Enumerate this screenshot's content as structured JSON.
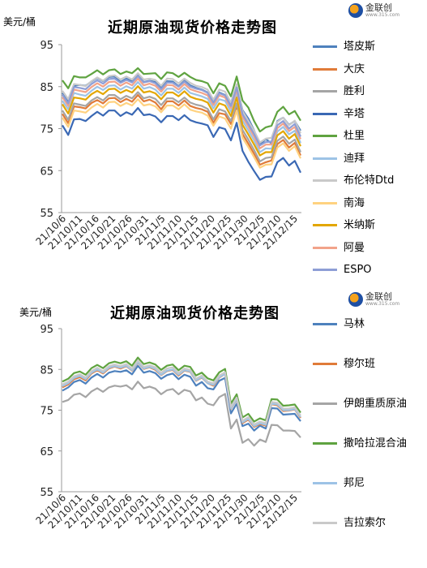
{
  "chart_data": [
    {
      "type": "line",
      "title": "近期原油现货价格走势图",
      "unit_label": "美元/桶",
      "ylim": [
        55,
        95
      ],
      "yticks": [
        55,
        65,
        75,
        85,
        95
      ],
      "grid": false,
      "legend_position": "right",
      "xtick_labels": [
        "21/10/6",
        "21/10/11",
        "21/10/16",
        "21/10/21",
        "21/10/26",
        "21/10/31",
        "21/11/5",
        "21/11/10",
        "21/11/15",
        "21/11/20",
        "21/11/25",
        "21/11/30",
        "21/12/5",
        "21/12/10",
        "21/12/15"
      ],
      "series": [
        {
          "name": "塔皮斯",
          "color": "#4e81bd",
          "values": [
            83.5,
            81.5,
            85.2,
            85.4,
            85.2,
            86.2,
            87.1,
            86.3,
            87.3,
            87.4,
            86.1,
            86.9,
            86.2,
            87.8,
            86.1,
            86.4,
            86.1,
            84.7,
            86.3,
            86.2,
            85.1,
            86.4,
            85.3,
            84.7,
            84.3,
            83.6,
            81.1,
            83.6,
            83.0,
            80.5,
            85.3,
            79.4,
            77.4,
            74.6,
            71.1,
            72.5,
            71.5,
            76.8,
            77.6,
            75.9,
            76.8,
            74.5
          ]
        },
        {
          "name": "大庆",
          "color": "#e07b39",
          "values": [
            78.5,
            76.3,
            80.3,
            80.1,
            79.8,
            81.1,
            81.8,
            81.0,
            82.2,
            82.3,
            81.3,
            82.1,
            81.4,
            83.0,
            81.5,
            81.9,
            81.2,
            79.6,
            81.5,
            81.5,
            80.5,
            81.7,
            80.4,
            79.9,
            79.6,
            79.0,
            76.4,
            78.7,
            78.4,
            76.1,
            80.2,
            73.7,
            71.4,
            69.0,
            66.4,
            67.0,
            67.4,
            71.3,
            72.3,
            70.5,
            71.6,
            68.6
          ]
        },
        {
          "name": "胜利",
          "color": "#a5a5a5",
          "values": [
            79.3,
            77.1,
            81.0,
            80.7,
            80.4,
            81.7,
            82.5,
            81.7,
            83.0,
            83.0,
            82.0,
            82.8,
            82.2,
            83.7,
            82.2,
            82.6,
            82.1,
            80.6,
            82.2,
            82.2,
            81.3,
            82.4,
            81.2,
            80.7,
            80.4,
            79.7,
            77.2,
            79.6,
            79.1,
            76.8,
            81.0,
            74.7,
            72.4,
            69.9,
            67.2,
            68.0,
            68.2,
            72.1,
            73.1,
            71.4,
            72.4,
            69.4
          ]
        },
        {
          "name": "辛塔",
          "color": "#3a68b4",
          "values": [
            75.8,
            73.5,
            77.2,
            77.3,
            76.8,
            78.0,
            79.0,
            78.1,
            79.3,
            79.3,
            78.0,
            78.9,
            78.3,
            79.9,
            78.2,
            78.4,
            77.9,
            76.5,
            78.0,
            78.0,
            77.0,
            78.2,
            77.0,
            76.5,
            76.2,
            75.8,
            73.0,
            75.3,
            74.9,
            72.2,
            76.4,
            69.7,
            67.1,
            64.9,
            62.8,
            63.5,
            63.6,
            67.0,
            68.0,
            66.2,
            67.3,
            64.5
          ]
        },
        {
          "name": "杜里",
          "color": "#5fa340",
          "values": [
            86.5,
            84.6,
            87.5,
            87.2,
            87.2,
            88.0,
            88.9,
            87.9,
            88.9,
            89.1,
            88.0,
            88.6,
            88.2,
            89.4,
            88.0,
            88.1,
            88.2,
            86.8,
            88.4,
            88.2,
            87.3,
            88.3,
            87.3,
            86.6,
            86.3,
            85.8,
            83.4,
            85.8,
            85.2,
            82.7,
            87.4,
            81.7,
            80.0,
            76.8,
            74.3,
            75.3,
            75.7,
            79.0,
            80.2,
            78.4,
            79.2,
            76.9
          ]
        },
        {
          "name": "迪拜",
          "color": "#9dc3e6",
          "values": [
            81.6,
            79.6,
            83.5,
            83.1,
            82.8,
            84.0,
            85.0,
            84.2,
            85.2,
            85.3,
            84.3,
            85.1,
            84.5,
            86.1,
            84.5,
            84.9,
            84.3,
            82.9,
            84.5,
            84.5,
            83.5,
            84.8,
            83.5,
            83.1,
            82.7,
            82.1,
            79.8,
            82.0,
            81.6,
            79.0,
            83.4,
            76.9,
            74.6,
            72.2,
            69.4,
            70.3,
            70.2,
            74.3,
            75.4,
            73.6,
            74.5,
            71.6
          ]
        },
        {
          "name": "布伦特Dtd",
          "color": "#c9c9c9",
          "values": [
            84.0,
            82.0,
            85.6,
            85.4,
            85.1,
            86.3,
            87.2,
            86.4,
            87.5,
            87.7,
            86.7,
            87.4,
            86.7,
            88.2,
            86.7,
            86.9,
            86.6,
            85.2,
            86.9,
            86.8,
            85.8,
            86.9,
            85.9,
            85.2,
            84.9,
            84.3,
            81.9,
            84.3,
            83.8,
            81.2,
            85.6,
            79.2,
            76.8,
            74.5,
            71.7,
            72.6,
            72.8,
            76.6,
            77.6,
            75.8,
            76.9,
            73.9
          ]
        },
        {
          "name": "南海",
          "color": "#ffd280",
          "values": [
            77.6,
            75.4,
            79.3,
            79.1,
            78.8,
            80.0,
            80.9,
            80.0,
            81.3,
            81.4,
            80.4,
            81.1,
            80.5,
            82.0,
            80.5,
            80.8,
            80.3,
            78.9,
            80.5,
            80.5,
            79.6,
            80.8,
            79.5,
            79.1,
            78.8,
            78.1,
            75.7,
            77.9,
            77.4,
            75.0,
            79.3,
            72.8,
            70.6,
            68.2,
            65.7,
            66.4,
            66.5,
            70.5,
            71.5,
            69.7,
            70.8,
            67.9
          ]
        },
        {
          "name": "米纳斯",
          "color": "#e3a600",
          "values": [
            80.8,
            78.6,
            82.4,
            82.2,
            81.9,
            83.2,
            84.0,
            83.2,
            84.4,
            84.5,
            83.5,
            84.2,
            83.6,
            85.1,
            83.6,
            83.9,
            83.4,
            82.0,
            83.6,
            83.6,
            82.7,
            83.9,
            82.6,
            82.1,
            81.8,
            81.2,
            78.8,
            81.0,
            80.5,
            78.0,
            82.4,
            75.9,
            73.6,
            71.2,
            68.6,
            69.4,
            69.4,
            73.4,
            74.4,
            72.6,
            73.7,
            70.8
          ]
        },
        {
          "name": "阿曼",
          "color": "#f2a38a",
          "values": [
            82.5,
            80.4,
            84.3,
            84.0,
            83.7,
            84.9,
            85.8,
            85.0,
            86.1,
            86.2,
            85.2,
            86.0,
            85.3,
            86.9,
            85.3,
            85.7,
            85.2,
            83.8,
            85.4,
            85.3,
            84.3,
            85.6,
            84.4,
            83.9,
            83.5,
            82.9,
            80.6,
            82.9,
            82.4,
            79.9,
            84.3,
            77.8,
            75.5,
            73.1,
            70.3,
            71.2,
            71.2,
            75.1,
            76.2,
            74.4,
            75.4,
            72.5
          ]
        },
        {
          "name": "ESPO",
          "color": "#8e9ed6",
          "values": [
            83.1,
            81.0,
            84.9,
            84.7,
            84.4,
            85.6,
            86.5,
            85.7,
            86.8,
            86.9,
            85.9,
            86.6,
            86.0,
            87.5,
            86.0,
            86.3,
            85.8,
            84.4,
            86.0,
            85.9,
            85.0,
            86.2,
            85.0,
            84.5,
            84.2,
            83.5,
            81.2,
            83.4,
            82.9,
            80.4,
            84.8,
            78.4,
            76.1,
            73.7,
            71.0,
            71.8,
            71.9,
            75.8,
            76.8,
            75.0,
            76.1,
            73.1
          ]
        }
      ]
    },
    {
      "type": "line",
      "title": "近期原油现货价格走势图",
      "unit_label": "美元/桶",
      "ylim": [
        55,
        95
      ],
      "yticks": [
        55,
        65,
        75,
        85,
        95
      ],
      "grid": false,
      "legend_position": "right",
      "xtick_labels": [
        "21/10/6",
        "21/10/11",
        "21/10/16",
        "21/10/21",
        "21/10/26",
        "21/10/31",
        "21/11/5",
        "21/11/10",
        "21/11/15",
        "21/11/20",
        "21/11/25",
        "21/11/30",
        "21/12/5",
        "21/12/10",
        "21/12/15"
      ],
      "series": [
        {
          "name": "马林",
          "color": "#4e81bd",
          "values": [
            79.8,
            80.6,
            81.9,
            82.4,
            81.5,
            83.0,
            83.9,
            83.0,
            84.2,
            84.6,
            84.4,
            84.8,
            83.8,
            85.9,
            84.2,
            84.6,
            84.1,
            82.7,
            83.6,
            84.0,
            82.6,
            83.7,
            83.2,
            81.0,
            81.9,
            80.4,
            80.1,
            82.2,
            82.9,
            74.2,
            76.6,
            71.1,
            71.7,
            70.0,
            71.2,
            70.5,
            75.5,
            75.4,
            73.9,
            74.0,
            74.1,
            72.3
          ]
        },
        {
          "name": "穆尔班",
          "color": "#e07b39",
          "values": [
            80.6,
            81.3,
            82.6,
            83.1,
            82.3,
            84.0,
            84.8,
            84.0,
            85.2,
            85.7,
            85.2,
            85.8,
            84.7,
            86.7,
            85.1,
            85.5,
            84.9,
            83.6,
            84.6,
            84.9,
            83.5,
            84.7,
            84.4,
            82.2,
            83.0,
            81.6,
            81.0,
            83.0,
            83.9,
            75.3,
            77.6,
            71.8,
            72.7,
            70.9,
            71.6,
            71.2,
            76.5,
            76.2,
            74.8,
            74.9,
            75.2,
            73.1
          ]
        },
        {
          "name": "伊朗重质原油",
          "color": "#a5a5a5",
          "values": [
            77.0,
            77.5,
            78.8,
            79.1,
            78.2,
            79.6,
            80.4,
            79.5,
            80.6,
            81.0,
            80.8,
            81.1,
            80.1,
            82.0,
            80.4,
            80.8,
            80.3,
            78.9,
            79.9,
            80.2,
            78.9,
            80.0,
            79.6,
            77.4,
            78.1,
            76.6,
            76.2,
            78.2,
            79.0,
            70.5,
            72.7,
            67.0,
            67.9,
            66.3,
            67.8,
            67.2,
            71.4,
            71.3,
            70.0,
            70.0,
            69.9,
            68.3
          ]
        },
        {
          "name": "撒哈拉混合油",
          "color": "#5fa340",
          "values": [
            82.0,
            82.7,
            84.1,
            84.5,
            83.7,
            85.3,
            86.1,
            85.3,
            86.5,
            86.9,
            86.5,
            87.0,
            85.9,
            87.9,
            86.3,
            86.7,
            86.2,
            84.9,
            85.9,
            86.2,
            84.8,
            85.9,
            85.6,
            83.5,
            84.2,
            82.8,
            82.3,
            84.3,
            85.1,
            76.6,
            78.9,
            73.2,
            74.1,
            72.2,
            73.0,
            72.5,
            77.7,
            77.6,
            76.1,
            76.2,
            76.4,
            74.4
          ]
        },
        {
          "name": "邦尼",
          "color": "#9dc3e6",
          "values": [
            80.9,
            81.6,
            82.9,
            83.4,
            82.6,
            84.2,
            85.0,
            84.2,
            85.4,
            85.8,
            85.4,
            85.9,
            84.8,
            86.8,
            85.2,
            85.6,
            85.1,
            83.7,
            84.7,
            85.0,
            83.7,
            84.8,
            84.5,
            82.3,
            83.1,
            81.6,
            81.2,
            83.1,
            83.9,
            75.4,
            77.7,
            72.0,
            72.9,
            71.1,
            71.8,
            71.4,
            76.6,
            76.4,
            75.0,
            75.0,
            75.3,
            73.3
          ]
        },
        {
          "name": "吉拉索尔",
          "color": "#c9c9c9",
          "values": [
            81.3,
            82.0,
            83.3,
            83.8,
            83.0,
            84.6,
            85.4,
            84.6,
            85.8,
            86.2,
            85.8,
            86.3,
            85.2,
            87.2,
            85.6,
            86.0,
            85.5,
            84.2,
            85.2,
            85.5,
            84.1,
            85.2,
            84.9,
            82.7,
            83.5,
            82.0,
            81.6,
            83.5,
            84.3,
            75.8,
            78.1,
            72.4,
            73.3,
            71.5,
            72.2,
            71.8,
            77.0,
            76.8,
            75.4,
            75.4,
            75.7,
            73.7
          ]
        }
      ]
    }
  ],
  "logo": {
    "text": "金联创",
    "sub": "www.315.com"
  }
}
